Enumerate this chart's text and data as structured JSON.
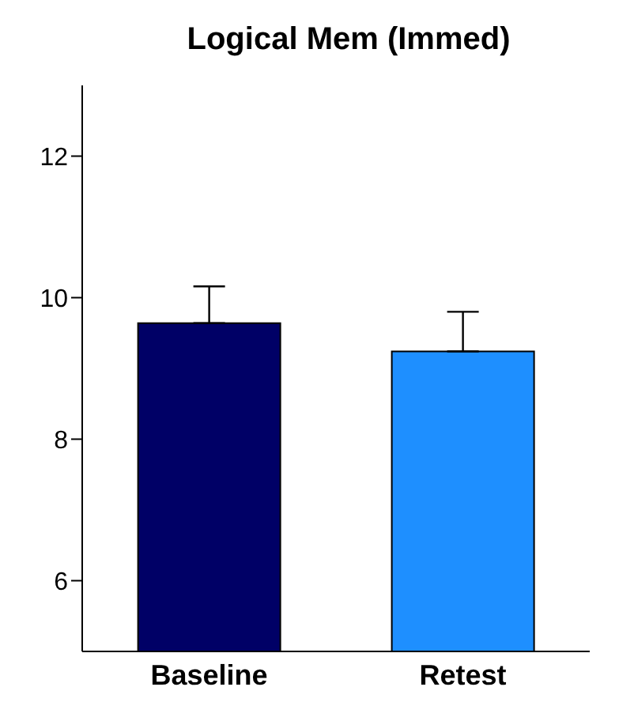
{
  "chart_data": {
    "type": "bar",
    "title": "Logical Mem (Immed)",
    "categories": [
      "Baseline",
      "Retest"
    ],
    "values": [
      9.64,
      9.24
    ],
    "colors": [
      "#000066",
      "#1e8fff"
    ],
    "errors": [
      [
        9.64,
        10.16
      ],
      [
        9.24,
        9.8
      ]
    ],
    "ylim": [
      5,
      13
    ],
    "yticks": [
      6,
      8,
      10,
      12
    ]
  }
}
